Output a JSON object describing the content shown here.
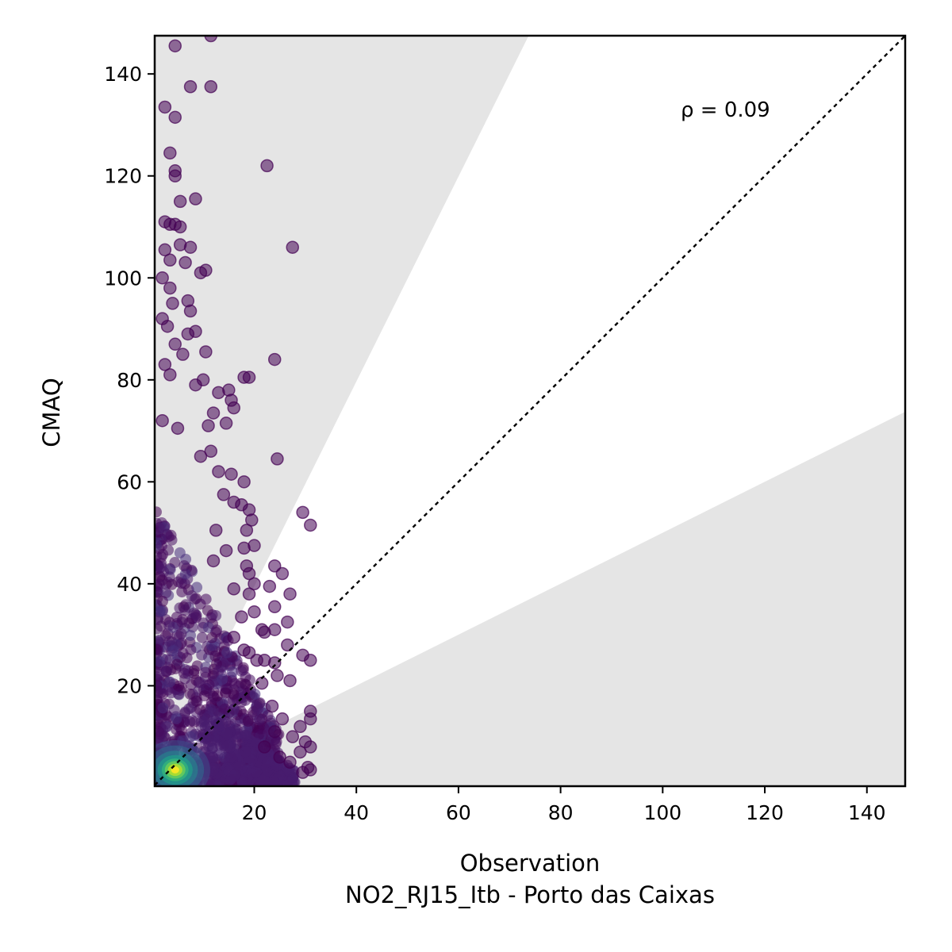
{
  "chart_data": {
    "type": "scatter",
    "xlabel": "Observation",
    "xlabel2": "NO2_RJ15_Itb - Porto das Caixas",
    "ylabel": "CMAQ",
    "xlim": [
      0.5,
      147.5
    ],
    "ylim": [
      0.3,
      147.5
    ],
    "xticks": [
      20,
      40,
      60,
      80,
      100,
      120,
      140
    ],
    "yticks": [
      20,
      40,
      60,
      80,
      100,
      120,
      140
    ],
    "annotation": "ρ = 0.09",
    "reference_line": "y = x (dotted)",
    "shaded_band": "grey regions outside factor-of-2 band (y > 2x and y < x/2)",
    "colormap": "viridis (point density)",
    "outlier_points": [
      [
        4.5,
        145.5
      ],
      [
        11.5,
        147.5
      ],
      [
        2.5,
        133.5
      ],
      [
        4.5,
        131.5
      ],
      [
        7.5,
        137.5
      ],
      [
        11.5,
        137.5
      ],
      [
        3.5,
        124.5
      ],
      [
        4.5,
        121
      ],
      [
        4.5,
        120
      ],
      [
        22.5,
        122
      ],
      [
        8.5,
        115.5
      ],
      [
        5.5,
        115
      ],
      [
        2.5,
        111
      ],
      [
        3.5,
        110.5
      ],
      [
        4.5,
        110.5
      ],
      [
        5.5,
        110
      ],
      [
        27.5,
        106
      ],
      [
        2.5,
        105.5
      ],
      [
        3.5,
        103.5
      ],
      [
        5.5,
        106.5
      ],
      [
        6.5,
        103
      ],
      [
        7.5,
        106
      ],
      [
        9.5,
        101
      ],
      [
        10.5,
        101.5
      ],
      [
        2,
        100
      ],
      [
        3.5,
        98
      ],
      [
        2,
        92
      ],
      [
        3,
        90.5
      ],
      [
        4,
        95
      ],
      [
        7,
        95.5
      ],
      [
        7.5,
        93.5
      ],
      [
        8.5,
        89.5
      ],
      [
        7,
        89
      ],
      [
        6,
        85
      ],
      [
        10.5,
        85.5
      ],
      [
        24,
        84
      ],
      [
        2.5,
        83
      ],
      [
        3.5,
        81
      ],
      [
        4.5,
        87
      ],
      [
        18,
        80.5
      ],
      [
        19,
        80.5
      ],
      [
        10,
        80
      ],
      [
        8.5,
        79
      ],
      [
        13,
        77.5
      ],
      [
        15,
        78
      ],
      [
        15.5,
        76
      ],
      [
        12,
        73.5
      ],
      [
        16,
        74.5
      ],
      [
        14.5,
        71.5
      ],
      [
        11,
        71
      ],
      [
        2,
        72
      ],
      [
        5,
        70.5
      ],
      [
        24.5,
        64.5
      ],
      [
        11.5,
        66
      ],
      [
        9.5,
        65
      ],
      [
        13,
        62
      ],
      [
        15.5,
        61.5
      ],
      [
        18,
        60
      ],
      [
        29.5,
        54
      ],
      [
        31,
        51.5
      ],
      [
        14,
        57.5
      ],
      [
        16,
        56
      ],
      [
        17.5,
        55.5
      ],
      [
        19,
        54.5
      ],
      [
        18.5,
        50.5
      ],
      [
        12.5,
        50.5
      ],
      [
        19.5,
        52.5
      ],
      [
        20,
        47.5
      ],
      [
        18,
        47
      ],
      [
        14.5,
        46.5
      ],
      [
        12,
        44.5
      ],
      [
        24,
        43.5
      ],
      [
        25.5,
        42
      ],
      [
        18.5,
        43.5
      ],
      [
        19,
        42
      ],
      [
        23,
        39.5
      ],
      [
        20,
        40
      ],
      [
        16,
        39
      ],
      [
        19,
        38
      ],
      [
        27,
        38
      ],
      [
        24,
        35.5
      ],
      [
        26.5,
        32.5
      ],
      [
        24,
        31
      ],
      [
        21.5,
        31
      ],
      [
        22,
        30.5
      ],
      [
        26.5,
        28
      ],
      [
        16,
        29.5
      ],
      [
        17.5,
        33.5
      ],
      [
        20,
        34.5
      ],
      [
        29.5,
        26
      ],
      [
        31,
        25
      ],
      [
        18,
        27
      ],
      [
        19,
        26.5
      ],
      [
        20.5,
        25
      ],
      [
        22,
        25
      ],
      [
        24,
        24.5
      ],
      [
        21.5,
        20.5
      ],
      [
        24.5,
        22
      ],
      [
        27,
        21
      ],
      [
        23.5,
        16
      ],
      [
        25.5,
        13.5
      ],
      [
        31,
        15
      ],
      [
        31,
        13.5
      ],
      [
        29,
        12
      ],
      [
        27.5,
        10
      ],
      [
        30,
        9
      ],
      [
        31,
        8
      ],
      [
        29,
        7
      ],
      [
        30.5,
        4
      ],
      [
        29.5,
        3
      ],
      [
        31,
        3.5
      ],
      [
        27,
        5
      ],
      [
        25,
        6
      ],
      [
        22,
        8
      ],
      [
        24,
        11
      ]
    ]
  }
}
